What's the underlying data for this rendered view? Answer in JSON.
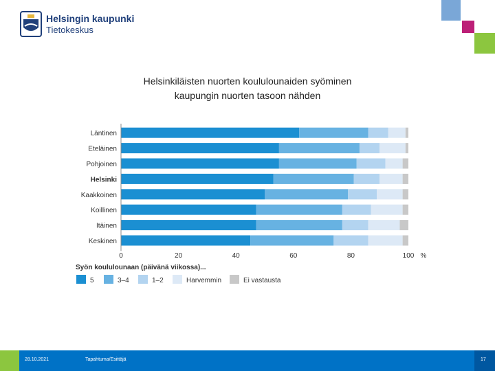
{
  "header": {
    "logo_line1": "Helsingin kaupunki",
    "logo_line2": "Tietokeskus"
  },
  "footer": {
    "date": "28.10.2021",
    "title": "Tapahtuma/Esittäjä",
    "page": "17"
  },
  "colors": {
    "s5": "#1b8fd2",
    "s34": "#67b2e2",
    "s12": "#b3d4f0",
    "harvemmin": "#dde9f6",
    "ei_vastausta": "#c8c8c8",
    "footer": "#0072c6",
    "accent_green": "#8cc63f",
    "accent_magenta": "#bc1f77",
    "accent_lightblue": "#7aa7d7"
  },
  "chart_data": {
    "type": "bar",
    "orientation": "horizontal",
    "stacked": true,
    "title_line1": "Helsinkiläisten nuorten koululounaiden syöminen",
    "title_line2": "kaupungin nuorten tasoon nähden",
    "categories": [
      "Läntinen",
      "Eteläinen",
      "Pohjoinen",
      "Helsinki",
      "Kaakkoinen",
      "Koillinen",
      "Itäinen",
      "Keskinen"
    ],
    "highlight_category": "Helsinki",
    "series": [
      {
        "name": "5",
        "color_key": "s5",
        "values": [
          62,
          55,
          55,
          53,
          50,
          47,
          47,
          45
        ]
      },
      {
        "name": "3–4",
        "color_key": "s34",
        "values": [
          24,
          28,
          27,
          28,
          29,
          30,
          30,
          29
        ]
      },
      {
        "name": "1–2",
        "color_key": "s12",
        "values": [
          7,
          7,
          10,
          9,
          10,
          10,
          9,
          12
        ]
      },
      {
        "name": "Harvemmin",
        "color_key": "harvemmin",
        "values": [
          6,
          9,
          6,
          8,
          9,
          11,
          11,
          12
        ]
      },
      {
        "name": "Ei vastausta",
        "color_key": "ei_vastausta",
        "values": [
          1,
          1,
          2,
          2,
          2,
          2,
          3,
          2
        ]
      }
    ],
    "xlim": [
      0,
      100
    ],
    "xticks": [
      "0",
      "20",
      "40",
      "60",
      "80",
      "100"
    ],
    "xlabel_unit": "%",
    "legend_title": "Syön koululounaan (päivänä viikossa)...",
    "legend_position": "bottom"
  }
}
